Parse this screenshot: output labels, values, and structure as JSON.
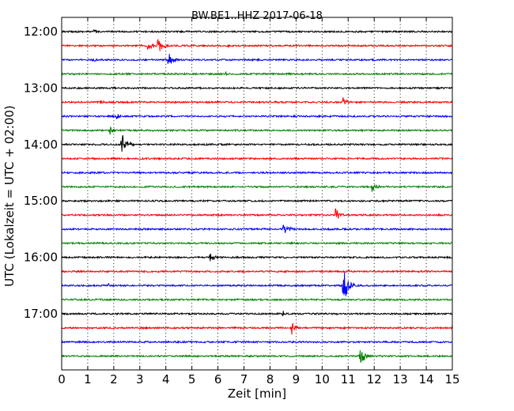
{
  "chart_data": {
    "type": "line",
    "title": "BW.BE1..HHZ 2017-06-18",
    "xlabel": "Zeit  [min]",
    "ylabel": "UTC (Lokalzeit = UTC + 02:00)",
    "xlim": [
      0,
      15
    ],
    "x_ticks": [
      "0",
      "1",
      "2",
      "3",
      "4",
      "5",
      "6",
      "7",
      "8",
      "9",
      "10",
      "11",
      "12",
      "13",
      "14",
      "15"
    ],
    "y_tick_labels": [
      "12:00",
      "13:00",
      "14:00",
      "15:00",
      "16:00",
      "17:00"
    ],
    "grid": "vertical dotted",
    "colors": [
      "#000000",
      "#ff0000",
      "#0000ff",
      "#008000"
    ],
    "traces": [
      {
        "start": "12:00",
        "color": "#000000",
        "events": [
          {
            "t": 1.25,
            "amp": 4,
            "dur": 0.35
          }
        ]
      },
      {
        "start": "12:15",
        "color": "#ff0000",
        "events": [
          {
            "t": 3.3,
            "amp": 7,
            "dur": 0.35
          },
          {
            "t": 3.7,
            "amp": 13,
            "dur": 0.35
          },
          {
            "t": 6.4,
            "amp": 2,
            "dur": 0.3
          },
          {
            "t": 14.2,
            "amp": 3,
            "dur": 0.1
          }
        ]
      },
      {
        "start": "12:30",
        "color": "#0000ff",
        "events": [
          {
            "t": 1.2,
            "amp": 3,
            "dur": 0.5
          },
          {
            "t": 4.1,
            "amp": 11,
            "dur": 0.4
          }
        ]
      },
      {
        "start": "12:45",
        "color": "#008000",
        "events": [
          {
            "t": 2.0,
            "amp": 2,
            "dur": 0.3
          },
          {
            "t": 6.3,
            "amp": 4,
            "dur": 0.1
          }
        ]
      },
      {
        "start": "13:00",
        "color": "#000000",
        "events": []
      },
      {
        "start": "13:15",
        "color": "#ff0000",
        "events": [
          {
            "t": 1.5,
            "amp": 3,
            "dur": 0.3
          },
          {
            "t": 10.8,
            "amp": 7,
            "dur": 0.35
          }
        ]
      },
      {
        "start": "13:30",
        "color": "#0000ff",
        "events": [
          {
            "t": 2.1,
            "amp": 4,
            "dur": 0.5
          }
        ]
      },
      {
        "start": "13:45",
        "color": "#008000",
        "events": [
          {
            "t": 1.8,
            "amp": 8,
            "dur": 0.4
          }
        ]
      },
      {
        "start": "14:00",
        "color": "#000000",
        "events": [
          {
            "t": 2.3,
            "amp": 15,
            "dur": 0.45
          }
        ]
      },
      {
        "start": "14:15",
        "color": "#ff0000",
        "events": []
      },
      {
        "start": "14:30",
        "color": "#0000ff",
        "events": []
      },
      {
        "start": "14:45",
        "color": "#008000",
        "events": [
          {
            "t": 11.9,
            "amp": 9,
            "dur": 0.4
          }
        ]
      },
      {
        "start": "15:00",
        "color": "#000000",
        "events": []
      },
      {
        "start": "15:15",
        "color": "#ff0000",
        "events": [
          {
            "t": 10.5,
            "amp": 10,
            "dur": 0.4
          }
        ]
      },
      {
        "start": "15:30",
        "color": "#0000ff",
        "events": [
          {
            "t": 8.5,
            "amp": 7,
            "dur": 0.6
          }
        ]
      },
      {
        "start": "15:45",
        "color": "#008000",
        "events": []
      },
      {
        "start": "16:00",
        "color": "#000000",
        "events": [
          {
            "t": 5.7,
            "amp": 6,
            "dur": 0.4
          }
        ]
      },
      {
        "start": "16:15",
        "color": "#ff0000",
        "events": [
          {
            "t": 11.0,
            "amp": 3,
            "dur": 0.4
          }
        ]
      },
      {
        "start": "16:30",
        "color": "#0000ff",
        "events": [
          {
            "t": 1.8,
            "amp": 4,
            "dur": 0.05
          },
          {
            "t": 10.8,
            "amp": 28,
            "dur": 0.4
          }
        ]
      },
      {
        "start": "16:45",
        "color": "#008000",
        "events": []
      },
      {
        "start": "17:00",
        "color": "#000000",
        "events": [
          {
            "t": 8.5,
            "amp": 5,
            "dur": 0.1
          }
        ]
      },
      {
        "start": "17:15",
        "color": "#ff0000",
        "events": [
          {
            "t": 8.8,
            "amp": 11,
            "dur": 0.3
          }
        ]
      },
      {
        "start": "17:30",
        "color": "#0000ff",
        "events": []
      },
      {
        "start": "17:45",
        "color": "#008000",
        "events": [
          {
            "t": 11.45,
            "amp": 16,
            "dur": 0.35
          }
        ]
      }
    ]
  }
}
